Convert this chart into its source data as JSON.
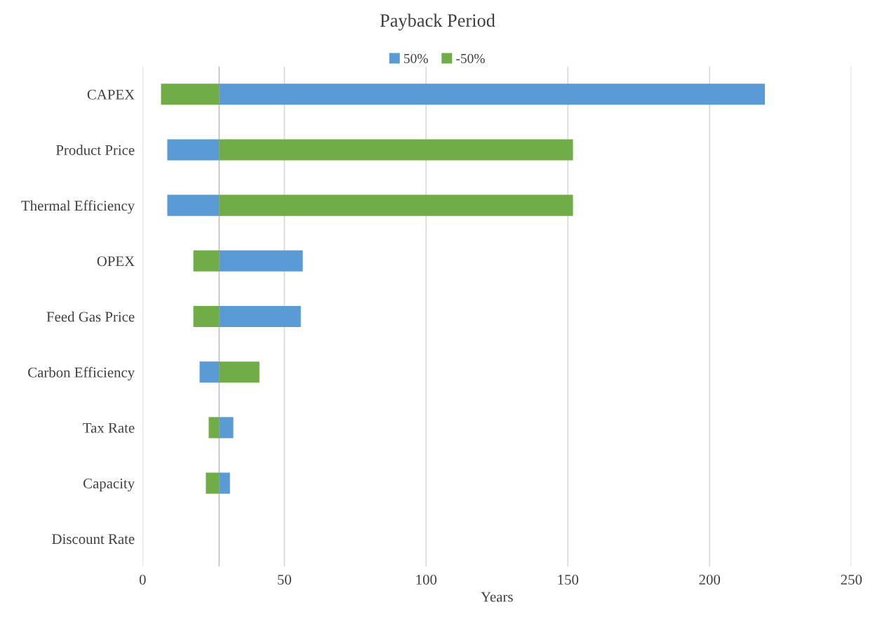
{
  "chart_data": {
    "type": "bar",
    "orientation": "horizontal",
    "title": "Payback Period",
    "xlabel": "Years",
    "categories": [
      "CAPEX",
      "Product Price",
      "Thermal Efficiency",
      "OPEX",
      "Feed Gas Price",
      "Carbon Efficiency",
      "Tax Rate",
      "Capacity",
      "Discount Rate"
    ],
    "series": [
      {
        "name": "50%",
        "color": "#5b9bd5",
        "base": [
          27,
          8.7,
          8.7,
          27,
          27,
          20.1,
          27,
          27,
          null
        ],
        "values": [
          192.5,
          18.3,
          18.3,
          29.5,
          28.8,
          6.9,
          5,
          3.8,
          null
        ]
      },
      {
        "name": "-50%",
        "color": "#70ad47",
        "base": [
          6.5,
          27,
          27,
          17.9,
          17.9,
          27,
          23.3,
          22.3,
          null
        ],
        "values": [
          20.5,
          124.8,
          124.8,
          9.1,
          9.1,
          14.2,
          3.7,
          4.7,
          null
        ]
      }
    ],
    "ref_lines": [
      {
        "axis": "x",
        "value": 27,
        "color": "#bfbfbf"
      }
    ],
    "xlim": [
      0,
      250
    ],
    "xticks": [
      0,
      50,
      100,
      150,
      200,
      250
    ],
    "grid": "x",
    "legend": "top"
  }
}
